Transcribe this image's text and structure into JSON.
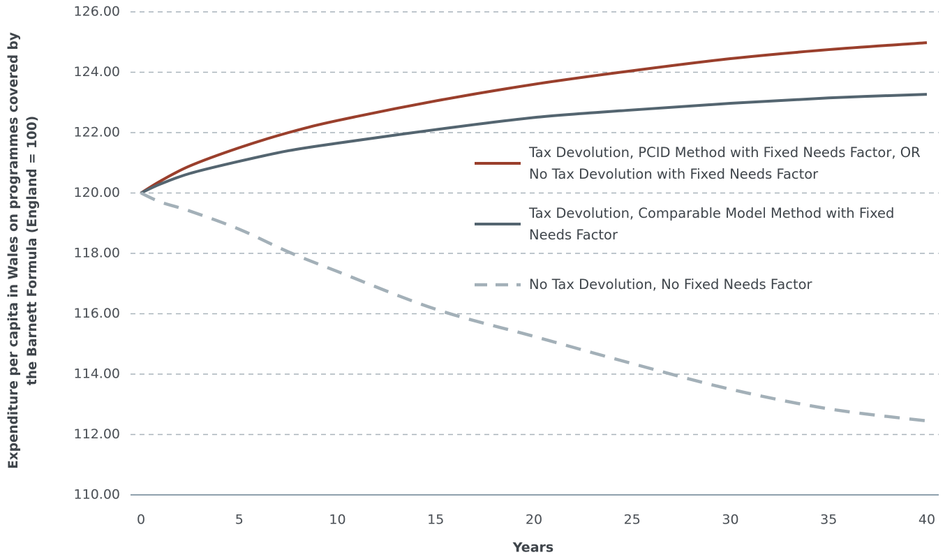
{
  "chart_data": {
    "type": "line",
    "y_label": "Expenditure per capita in Wales on programmes covered by the Barnett Formula (England = 100)",
    "x_label": "Years",
    "x": [
      0,
      1,
      2.5,
      5,
      7.5,
      10,
      15,
      20,
      25,
      30,
      35,
      40
    ],
    "series": [
      {
        "name": "Tax Devolution, PCID Method with Fixed Needs Factor, OR No Tax Devolution with Fixed Needs Factor",
        "color": "#9a3f2c",
        "dash": false,
        "values": [
          120,
          120.4,
          120.9,
          121.5,
          122.0,
          122.4,
          123.05,
          123.6,
          124.05,
          124.45,
          124.75,
          124.98
        ]
      },
      {
        "name": "Tax Devolution, Comparable Model Method with Fixed Needs Factor",
        "color": "#546570",
        "dash": false,
        "values": [
          120,
          120.3,
          120.65,
          121.05,
          121.4,
          121.65,
          122.1,
          122.5,
          122.75,
          122.97,
          123.15,
          123.27
        ]
      },
      {
        "name": "No Tax Devolution, No Fixed Needs Factor",
        "color": "#a3b0b8",
        "dash": true,
        "values": [
          120,
          119.7,
          119.4,
          118.8,
          118.05,
          117.4,
          116.15,
          115.25,
          114.35,
          113.5,
          112.85,
          112.45
        ]
      }
    ],
    "xlim": [
      0,
      40
    ],
    "xticks": [
      0,
      5,
      10,
      15,
      20,
      25,
      30,
      35,
      40
    ],
    "ylim": [
      110,
      126
    ],
    "yticks": [
      {
        "value": 110,
        "label": "110.00"
      },
      {
        "value": 112,
        "label": "112.00"
      },
      {
        "value": 114,
        "label": "114.00"
      },
      {
        "value": 116,
        "label": "116.00"
      },
      {
        "value": 118,
        "label": "118.00"
      },
      {
        "value": 120,
        "label": "120.00"
      },
      {
        "value": 122,
        "label": "122.00"
      },
      {
        "value": 124,
        "label": "124.00"
      },
      {
        "value": 126,
        "label": "126.00"
      }
    ],
    "grid": true
  }
}
